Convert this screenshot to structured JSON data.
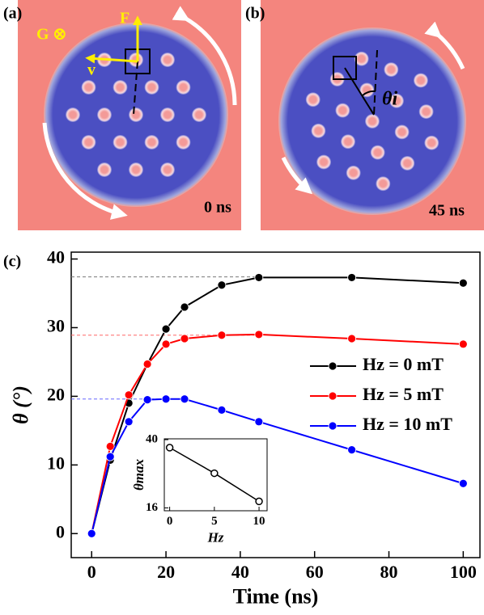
{
  "panels": {
    "a": {
      "label": "(a)",
      "g": "G ⊗",
      "f": "F",
      "v": "v",
      "time": "0 ns"
    },
    "b": {
      "label": "(b)",
      "theta": "θi",
      "time": "45 ns"
    },
    "c": {
      "label": "(c)"
    }
  },
  "chart_data": [
    {
      "type": "line",
      "x_label": "Time (ns)",
      "y_label": "θ (°)",
      "x": [
        0,
        5,
        10,
        15,
        20,
        25,
        35,
        45,
        70,
        100
      ],
      "series": [
        {
          "name": "Hz =  0 mT",
          "color": "#000000",
          "values": [
            0,
            10.7,
            19,
            24.7,
            29.8,
            33,
            36.2,
            37.3,
            37.3,
            36.5
          ]
        },
        {
          "name": "Hz =  5 mT",
          "color": "#ff0000",
          "values": [
            0,
            12.7,
            20.2,
            24.7,
            27.6,
            28.4,
            28.9,
            29,
            28.4,
            27.6
          ]
        },
        {
          "name": "Hz = 10 mT",
          "color": "#0000ff",
          "values": [
            0,
            11.2,
            16.3,
            19.5,
            19.6,
            19.6,
            18,
            16.3,
            12.2,
            7.3
          ]
        }
      ],
      "ref_lines": [
        {
          "value": 37.4,
          "to_x": 45,
          "color": "#777777"
        },
        {
          "value": 28.9,
          "to_x": 45,
          "color": "#ff6666"
        },
        {
          "value": 19.6,
          "to_x": 20,
          "color": "#6666ff"
        }
      ],
      "xlim": [
        -5.5,
        104.5
      ],
      "xticks": [
        0,
        20,
        40,
        60,
        80,
        100
      ],
      "ylim": [
        -3.5,
        41
      ],
      "yticks": [
        0,
        10,
        20,
        30,
        40
      ],
      "marker": "filled",
      "legend": "right"
    },
    {
      "type": "line",
      "x_label": "Hz",
      "y_label": "θmax",
      "x": [
        0,
        5,
        10
      ],
      "series": [
        {
          "color": "#000000",
          "values": [
            37.2,
            28.2,
            18.3
          ]
        }
      ],
      "xlim": [
        -0.6,
        10.9
      ],
      "xticks": [
        0,
        5,
        10
      ],
      "ylim": [
        15,
        40.3
      ],
      "yticks": [
        16,
        40
      ],
      "marker": "open"
    }
  ]
}
